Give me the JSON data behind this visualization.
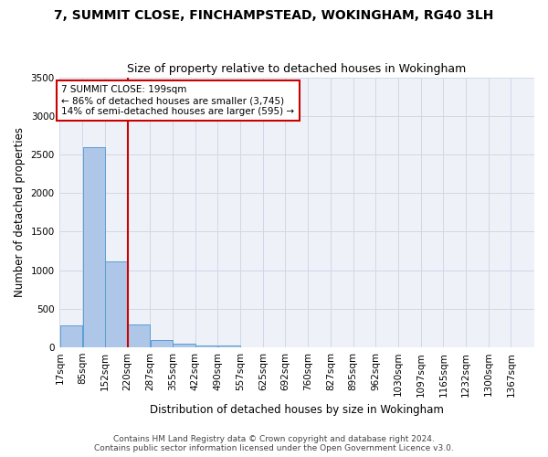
{
  "title": "7, SUMMIT CLOSE, FINCHAMPSTEAD, WOKINGHAM, RG40 3LH",
  "subtitle": "Size of property relative to detached houses in Wokingham",
  "xlabel": "Distribution of detached houses by size in Wokingham",
  "ylabel": "Number of detached properties",
  "bar_color": "#aec6e8",
  "bar_edge_color": "#5a9fd4",
  "grid_color": "#d0d8e8",
  "background_color": "#eef2f8",
  "annotation_line_color": "#cc0000",
  "annotation_box_color": "#cc0000",
  "annotation_text": "7 SUMMIT CLOSE: 199sqm\n← 86% of detached houses are smaller (3,745)\n14% of semi-detached houses are larger (595) →",
  "property_size_sqm": 199,
  "categories": [
    "17sqm",
    "85sqm",
    "152sqm",
    "220sqm",
    "287sqm",
    "355sqm",
    "422sqm",
    "490sqm",
    "557sqm",
    "625sqm",
    "692sqm",
    "760sqm",
    "827sqm",
    "895sqm",
    "962sqm",
    "1030sqm",
    "1097sqm",
    "1165sqm",
    "1232sqm",
    "1300sqm",
    "1367sqm"
  ],
  "bin_edges_sqm": [
    17,
    85,
    152,
    220,
    287,
    355,
    422,
    490,
    557,
    625,
    692,
    760,
    827,
    895,
    962,
    1030,
    1097,
    1165,
    1232,
    1300,
    1367
  ],
  "bar_heights": [
    290,
    2600,
    1110,
    300,
    90,
    45,
    25,
    20,
    0,
    0,
    0,
    0,
    0,
    0,
    0,
    0,
    0,
    0,
    0,
    0,
    0
  ],
  "ylim": [
    0,
    3500
  ],
  "yticks": [
    0,
    500,
    1000,
    1500,
    2000,
    2500,
    3000,
    3500
  ],
  "footer_text": "Contains HM Land Registry data © Crown copyright and database right 2024.\nContains public sector information licensed under the Open Government Licence v3.0.",
  "title_fontsize": 10,
  "subtitle_fontsize": 9,
  "xlabel_fontsize": 8.5,
  "ylabel_fontsize": 8.5,
  "tick_fontsize": 7.5,
  "annotation_fontsize": 7.5,
  "footer_fontsize": 6.5
}
